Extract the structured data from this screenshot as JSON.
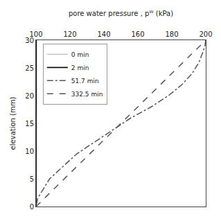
{
  "chart_data": {
    "type": "line",
    "xlabel": "pore water pressure , pᵂ (kPa)",
    "ylabel": "elevation (mm)",
    "xlim": [
      100,
      200
    ],
    "ylim": [
      0,
      30
    ],
    "xticks": [
      100,
      120,
      140,
      160,
      180,
      200
    ],
    "yticks": [
      0,
      5,
      10,
      15,
      20,
      25,
      30
    ],
    "grid": false,
    "legend": "upper left",
    "series": [
      {
        "name": "0 min",
        "color": "#aaaaaa",
        "line_style": "solid",
        "x": [
          100.0,
          100.0
        ],
        "values": [
          0.0,
          30.0
        ]
      },
      {
        "name": "2 min",
        "color": "#111111",
        "line_style": "solid",
        "x": [
          100.0,
          100.1
        ],
        "values": [
          0.0,
          30.0
        ]
      },
      {
        "name": "51.7 min",
        "color": "#555555",
        "line_style": "dashdot",
        "x": [
          200.0,
          199.5,
          198.5,
          196.0,
          192.0,
          186.0,
          178.0,
          168.0,
          156.0,
          141.0,
          124.0,
          108.0,
          101.0,
          100.0
        ],
        "values": [
          30.0,
          29.0,
          28.0,
          26.0,
          24.0,
          22.0,
          20.0,
          18.0,
          16.0,
          13.0,
          9.5,
          5.0,
          1.5,
          0.0
        ]
      },
      {
        "name": "332.5 min",
        "color": "#555555",
        "line_style": "dashed",
        "x": [
          100.0,
          103.3,
          106.7,
          110.0,
          113.3,
          116.7,
          120.0,
          123.3,
          126.7,
          130.0,
          133.3,
          136.7,
          140.0,
          143.3,
          146.7,
          150.0,
          153.3,
          156.7,
          160.0,
          163.3,
          166.7,
          170.0,
          173.3,
          176.7,
          180.0,
          183.3,
          186.7,
          190.0,
          193.3,
          196.7,
          200.0
        ],
        "values": [
          0.0,
          1.0,
          2.0,
          3.0,
          4.0,
          5.0,
          6.0,
          7.0,
          8.0,
          9.0,
          10.0,
          11.0,
          12.0,
          13.0,
          14.0,
          15.0,
          16.0,
          17.0,
          18.0,
          19.0,
          20.0,
          21.0,
          22.0,
          23.0,
          24.0,
          25.0,
          26.0,
          27.0,
          28.0,
          29.0,
          30.0
        ]
      }
    ]
  }
}
